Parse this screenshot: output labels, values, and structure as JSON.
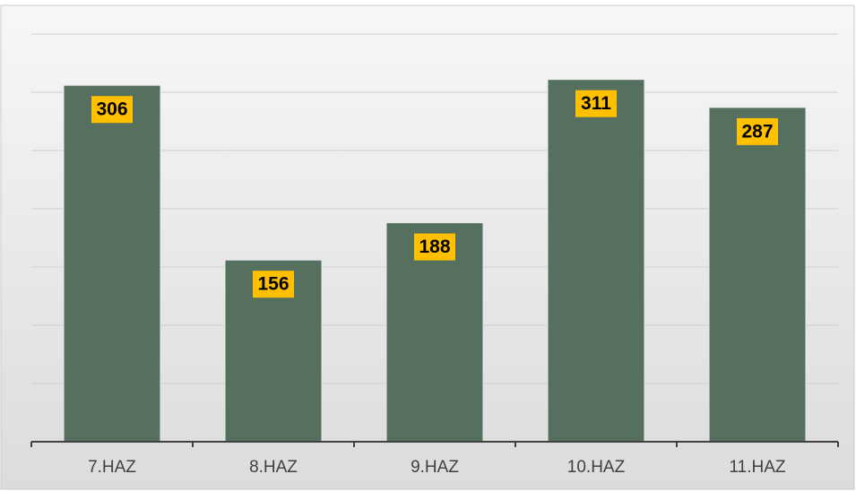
{
  "chart_data": {
    "type": "bar",
    "categories": [
      "7.HAZ",
      "8.HAZ",
      "9.HAZ",
      "10.HAZ",
      "11.HAZ"
    ],
    "values": [
      306,
      156,
      188,
      311,
      287
    ],
    "color": "#56705f",
    "label_color": "#ffc000",
    "ylim": [
      0,
      350
    ],
    "yticks": [
      0,
      50,
      100,
      150,
      200,
      250,
      300,
      350
    ],
    "grid": true
  }
}
